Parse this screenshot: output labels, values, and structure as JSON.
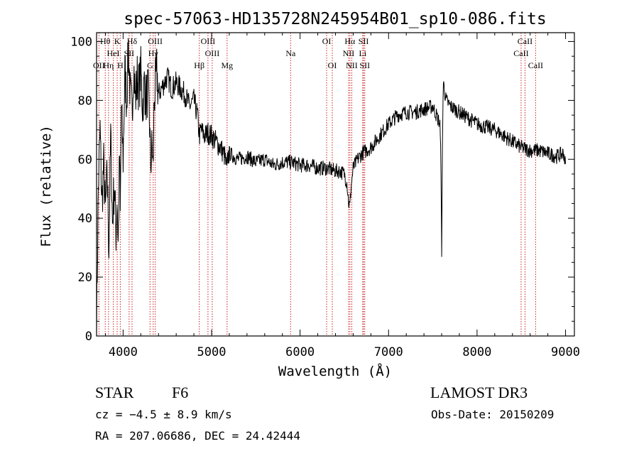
{
  "chart_data": {
    "type": "line",
    "title": "spec-57063-HD135728N245954B01_sp10-086.fits",
    "xlabel": "Wavelength (Å)",
    "ylabel": "Flux (relative)",
    "xlim": [
      3700,
      9100
    ],
    "ylim": [
      0,
      103
    ],
    "xticks": [
      4000,
      5000,
      6000,
      7000,
      8000,
      9000
    ],
    "yticks": [
      0,
      20,
      40,
      60,
      80,
      100
    ],
    "grid": false,
    "series": [
      {
        "name": "flux",
        "x": [
          3700,
          3720,
          3740,
          3760,
          3780,
          3800,
          3820,
          3840,
          3860,
          3880,
          3900,
          3920,
          3933,
          3945,
          3960,
          3968,
          3980,
          4000,
          4020,
          4040,
          4060,
          4080,
          4101,
          4120,
          4140,
          4160,
          4180,
          4200,
          4220,
          4240,
          4260,
          4280,
          4300,
          4310,
          4330,
          4340,
          4350,
          4380,
          4400,
          4450,
          4500,
          4550,
          4600,
          4650,
          4700,
          4750,
          4800,
          4840,
          4861,
          4880,
          4920,
          4960,
          5000,
          5050,
          5100,
          5150,
          5172,
          5184,
          5200,
          5250,
          5300,
          5400,
          5500,
          5600,
          5700,
          5800,
          5900,
          6000,
          6100,
          6200,
          6300,
          6400,
          6450,
          6500,
          6530,
          6550,
          6563,
          6575,
          6600,
          6650,
          6700,
          6750,
          6800,
          6900,
          7000,
          7100,
          7200,
          7300,
          7400,
          7500,
          7580,
          7594,
          7600,
          7610,
          7620,
          7650,
          7700,
          7750,
          7800,
          7900,
          8000,
          8100,
          8200,
          8300,
          8400,
          8500,
          8600,
          8700,
          8800,
          8900,
          8980,
          9000
        ],
        "values": [
          3,
          50,
          70,
          45,
          58,
          42,
          55,
          30,
          68,
          38,
          52,
          35,
          48,
          30,
          62,
          40,
          78,
          60,
          90,
          80,
          98,
          82,
          76,
          92,
          80,
          88,
          84,
          90,
          78,
          86,
          80,
          84,
          72,
          58,
          65,
          55,
          80,
          90,
          82,
          85,
          88,
          84,
          86,
          84,
          82,
          78,
          80,
          75,
          68,
          70,
          68,
          69,
          68,
          66,
          64,
          61,
          56,
          61,
          62,
          61,
          60,
          61,
          59,
          60,
          58,
          59,
          59,
          58,
          58,
          57,
          57,
          56,
          56,
          55,
          52,
          45,
          44,
          50,
          57,
          60,
          62,
          63,
          64,
          68,
          72,
          75,
          76,
          76,
          77,
          78,
          72,
          55,
          25,
          72,
          86,
          80,
          78,
          77,
          76,
          74,
          72,
          71,
          70,
          68,
          66,
          64,
          63,
          63,
          62,
          61,
          62,
          58
        ]
      }
    ],
    "annotations": [
      {
        "label": "Hθ",
        "x": 3798,
        "row": 1
      },
      {
        "label": "OII",
        "x": 3727,
        "row": 3
      },
      {
        "label": "Hη",
        "x": 3835,
        "row": 3
      },
      {
        "label": "HeI",
        "x": 3889,
        "row": 2
      },
      {
        "label": "K",
        "x": 3933,
        "row": 1
      },
      {
        "label": "SII",
        "x": 4068,
        "row": 2
      },
      {
        "label": "H",
        "x": 3968,
        "row": 3
      },
      {
        "label": "Hδ",
        "x": 4101,
        "row": 1
      },
      {
        "label": "OIII",
        "x": 4363,
        "row": 1
      },
      {
        "label": "Hγ",
        "x": 4340,
        "row": 2
      },
      {
        "label": "G",
        "x": 4304,
        "row": 3
      },
      {
        "label": "OIII",
        "x": 4959,
        "row": 1
      },
      {
        "label": "OIII",
        "x": 5007,
        "row": 2
      },
      {
        "label": "Hβ",
        "x": 4861,
        "row": 3
      },
      {
        "label": "Mg",
        "x": 5175,
        "row": 3
      },
      {
        "label": "Na",
        "x": 5893,
        "row": 2
      },
      {
        "label": "OI",
        "x": 6300,
        "row": 1
      },
      {
        "label": "OI",
        "x": 6364,
        "row": 3
      },
      {
        "label": "Hα",
        "x": 6563,
        "row": 1
      },
      {
        "label": "NII",
        "x": 6548,
        "row": 2
      },
      {
        "label": "NII",
        "x": 6584,
        "row": 3
      },
      {
        "label": "SII",
        "x": 6717,
        "row": 1
      },
      {
        "label": "Li",
        "x": 6708,
        "row": 2
      },
      {
        "label": "SII",
        "x": 6731,
        "row": 3
      },
      {
        "label": "CaII",
        "x": 8542,
        "row": 1
      },
      {
        "label": "CaII",
        "x": 8498,
        "row": 2
      },
      {
        "label": "CaII",
        "x": 8662,
        "row": 3
      }
    ]
  },
  "info": {
    "object_class": "STAR",
    "subclass": "F6",
    "survey": "LAMOST DR3",
    "cz": "cz = −4.5 ± 8.9 km/s",
    "obs_date": "Obs-Date: 20150209",
    "coords": "RA = 207.06686, DEC =  24.42444"
  },
  "colors": {
    "line": "#000000",
    "marker": "#cc2222",
    "axis": "#000000",
    "background": "#ffffff"
  }
}
